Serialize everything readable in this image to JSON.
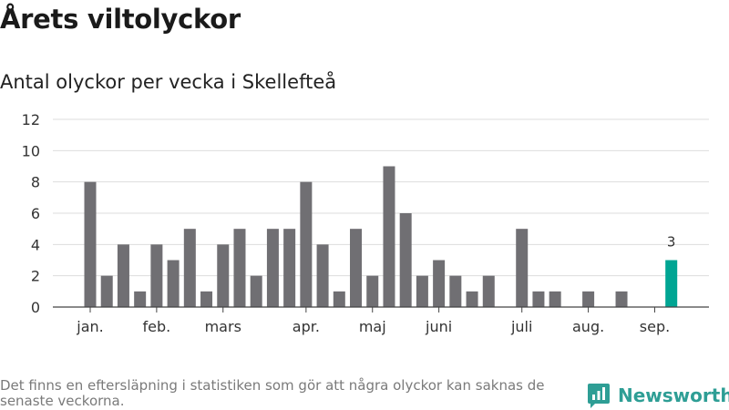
{
  "title": "Årets viltolyckor",
  "subtitle": "Antal olyckor per vecka i Skellefteå",
  "footnote": "Det finns en eftersläpning i statistiken som gör att några olyckor kan saknas de senaste veckorna.",
  "brand": {
    "name": "Newsworthy",
    "icon": "newsworthy-logo-icon",
    "color": "#2e9e95"
  },
  "chart_data": {
    "type": "bar",
    "week_values": [
      8,
      2,
      4,
      1,
      4,
      3,
      5,
      1,
      4,
      5,
      2,
      5,
      5,
      8,
      4,
      1,
      5,
      2,
      9,
      6,
      2,
      3,
      2,
      1,
      2,
      0,
      5,
      1,
      1,
      0,
      1,
      0,
      1,
      0,
      0,
      3
    ],
    "month_labels": [
      "jan.",
      "feb.",
      "mars",
      "apr.",
      "maj",
      "juni",
      "juli",
      "aug.",
      "sep."
    ],
    "month_label_weeks": [
      1,
      5,
      9,
      14,
      18,
      22,
      27,
      31,
      35
    ],
    "y_ticks": [
      0,
      2,
      4,
      6,
      8,
      10,
      12
    ],
    "ylim": [
      0,
      12
    ],
    "grid": true,
    "highlight_last": true,
    "last_value_label": "3",
    "colors": {
      "bar": "#706f73",
      "highlight": "#00a593",
      "grid": "#dddddd",
      "axis": "#444444"
    }
  }
}
